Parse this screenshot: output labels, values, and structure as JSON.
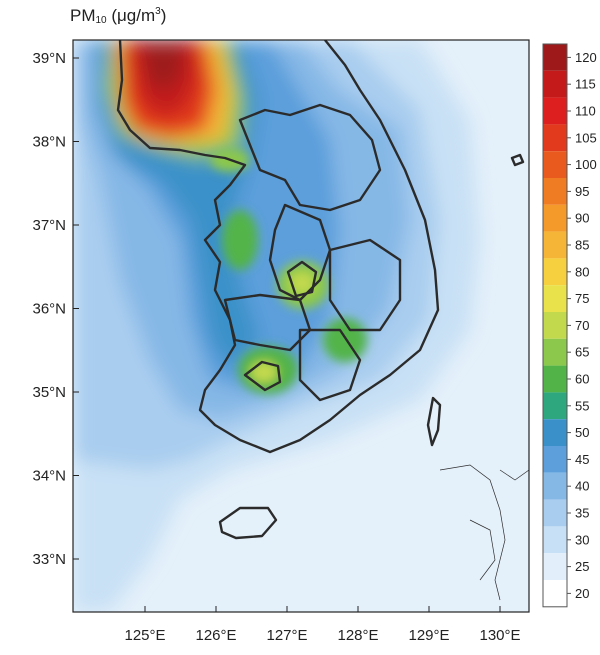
{
  "title": {
    "text": "PM",
    "sub": "10",
    "unit_open": " (μg/m",
    "unit_sup": "3",
    "unit_close": ")"
  },
  "map": {
    "lat_labels": [
      "39°N",
      "38°N",
      "37°N",
      "36°N",
      "35°N",
      "34°N",
      "33°N"
    ],
    "lon_labels": [
      "125°E",
      "126°E",
      "127°E",
      "128°E",
      "129°E",
      "130°E"
    ]
  },
  "colorbar": {
    "labels": [
      "120",
      "115",
      "110",
      "105",
      "100",
      "95",
      "90",
      "85",
      "80",
      "75",
      "70",
      "65",
      "60",
      "55",
      "50",
      "45",
      "40",
      "35",
      "30",
      "25",
      "20"
    ],
    "colors": [
      "#9e1a1a",
      "#c41a1a",
      "#de1f1f",
      "#e23a1d",
      "#e85a1e",
      "#ef7b22",
      "#f39a2a",
      "#f5b637",
      "#f7d040",
      "#e9e24a",
      "#c2d94d",
      "#8cc84b",
      "#52b448",
      "#2ea77e",
      "#3a91c9",
      "#5c9fdb",
      "#86b8e6",
      "#a9cdef",
      "#c8e0f6",
      "#e2eefa",
      "#ffffff"
    ]
  }
}
